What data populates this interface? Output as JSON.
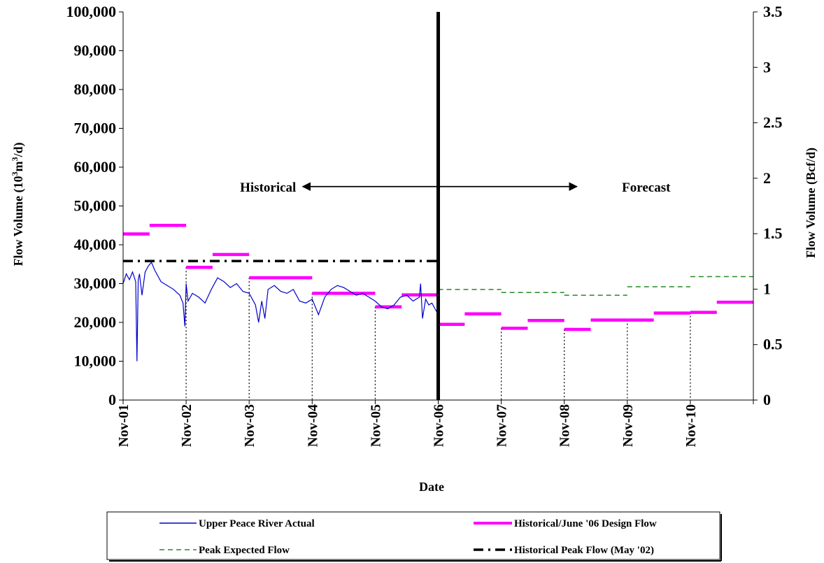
{
  "chart_data": {
    "type": "line",
    "title": "",
    "xlabel": "Date",
    "ylabel_left": "Flow Volume (10³m³/d)",
    "ylabel_left_parts": {
      "a": "Flow Volume (10",
      "sup1": "3",
      "b": "m",
      "sup2": "3",
      "c": "/d)"
    },
    "ylabel_right": "Flow Volume (Bcf/d)",
    "xlim": [
      0,
      10
    ],
    "ylim_left": [
      0,
      100000
    ],
    "ylim_right": [
      0,
      3.5
    ],
    "x_ticks": [
      "Nov-01",
      "Nov-02",
      "Nov-03",
      "Nov-04",
      "Nov-05",
      "Nov-06",
      "Nov-07",
      "Nov-08",
      "Nov-09",
      "Nov-10"
    ],
    "y_ticks_left": [
      "0",
      "10,000",
      "20,000",
      "30,000",
      "40,000",
      "50,000",
      "60,000",
      "70,000",
      "80,000",
      "90,000",
      "100,000"
    ],
    "y_ticks_right": [
      "0",
      "0.5",
      "1",
      "1.5",
      "2",
      "2.5",
      "3",
      "3.5"
    ],
    "divider_x": 5,
    "annotations": [
      {
        "text": "Historical",
        "x": 2.3,
        "y": 55000,
        "arrow": "left",
        "arrow_from": 5,
        "arrow_to": 2.85
      },
      {
        "text": "Forecast",
        "x": 8.3,
        "y": 55000,
        "arrow": "right",
        "arrow_from": 5,
        "arrow_to": 7.2
      }
    ],
    "legend": {
      "placement": "bottom",
      "entries": [
        {
          "name": "Upper Peace River Actual",
          "series": "actual"
        },
        {
          "name": "Historical/June '06 Design Flow",
          "series": "design"
        },
        {
          "name": "Peak Expected Flow",
          "series": "peak_expected"
        },
        {
          "name": "Historical Peak Flow (May '02)",
          "series": "historical_peak"
        }
      ]
    },
    "series": [
      {
        "key": "historical_peak",
        "name": "Historical Peak Flow (May '02)",
        "color": "#000000",
        "segments": [
          {
            "x0": 0,
            "x1": 5,
            "y": 35800
          }
        ]
      },
      {
        "key": "design",
        "name": "Historical/June '06 Design Flow",
        "color": "#ff00ff",
        "segments": [
          {
            "x0": 0,
            "x1": 0.42,
            "y": 42800
          },
          {
            "x0": 0.42,
            "x1": 1,
            "y": 45000
          },
          {
            "x0": 1,
            "x1": 1.42,
            "y": 34200
          },
          {
            "x0": 1.42,
            "x1": 2,
            "y": 37500
          },
          {
            "x0": 2,
            "x1": 3,
            "y": 31500
          },
          {
            "x0": 3,
            "x1": 4,
            "y": 27500
          },
          {
            "x0": 4,
            "x1": 4.42,
            "y": 24000
          },
          {
            "x0": 4.42,
            "x1": 5,
            "y": 27100
          },
          {
            "x0": 5,
            "x1": 5.42,
            "y": 19500
          },
          {
            "x0": 5.42,
            "x1": 6,
            "y": 22200
          },
          {
            "x0": 6,
            "x1": 6.42,
            "y": 18500
          },
          {
            "x0": 6.42,
            "x1": 7,
            "y": 20500
          },
          {
            "x0": 7,
            "x1": 7.42,
            "y": 18200
          },
          {
            "x0": 7.42,
            "x1": 8,
            "y": 20600
          },
          {
            "x0": 8,
            "x1": 8.42,
            "y": 20600
          },
          {
            "x0": 8.42,
            "x1": 9,
            "y": 22400
          },
          {
            "x0": 9,
            "x1": 9.42,
            "y": 22600
          },
          {
            "x0": 9.42,
            "x1": 10,
            "y": 25200
          }
        ]
      },
      {
        "key": "peak_expected",
        "name": "Peak Expected Flow",
        "color": "#228b22",
        "segments": [
          {
            "x0": 5,
            "x1": 6,
            "y": 28500
          },
          {
            "x0": 6,
            "x1": 7,
            "y": 27700
          },
          {
            "x0": 7,
            "x1": 8,
            "y": 27000
          },
          {
            "x0": 8,
            "x1": 9,
            "y": 29200
          },
          {
            "x0": 9,
            "x1": 10,
            "y": 31800
          }
        ]
      },
      {
        "key": "actual",
        "name": "Upper Peace River Actual",
        "color": "#0000cc",
        "x": [
          0,
          0.05,
          0.1,
          0.15,
          0.2,
          0.22,
          0.24,
          0.26,
          0.3,
          0.35,
          0.4,
          0.45,
          0.5,
          0.55,
          0.6,
          0.7,
          0.8,
          0.9,
          0.95,
          0.98,
          1.0,
          1.03,
          1.1,
          1.2,
          1.3,
          1.4,
          1.5,
          1.6,
          1.7,
          1.8,
          1.9,
          2.0,
          2.1,
          2.15,
          2.2,
          2.25,
          2.3,
          2.4,
          2.5,
          2.6,
          2.7,
          2.8,
          2.9,
          3.0,
          3.1,
          3.2,
          3.3,
          3.4,
          3.5,
          3.6,
          3.7,
          3.8,
          3.9,
          4.0,
          4.1,
          4.2,
          4.3,
          4.4,
          4.5,
          4.6,
          4.7,
          4.72,
          4.75,
          4.8,
          4.85,
          4.9,
          4.95,
          5.0
        ],
        "y": [
          30000,
          32500,
          31000,
          33000,
          30500,
          10000,
          31000,
          32500,
          27000,
          33000,
          34500,
          35500,
          33500,
          32000,
          30500,
          29500,
          28500,
          27000,
          25000,
          19000,
          30000,
          25500,
          27500,
          26500,
          25000,
          28500,
          31500,
          30500,
          29000,
          30000,
          28000,
          27500,
          24500,
          20000,
          25500,
          21000,
          28500,
          29500,
          28000,
          27500,
          28500,
          25500,
          25000,
          26000,
          22000,
          26500,
          28500,
          29500,
          29000,
          28000,
          27000,
          27500,
          26500,
          25500,
          24000,
          23500,
          24500,
          26500,
          27000,
          25500,
          26500,
          30000,
          21000,
          26000,
          24500,
          25000,
          23500,
          22000
        ]
      }
    ]
  }
}
